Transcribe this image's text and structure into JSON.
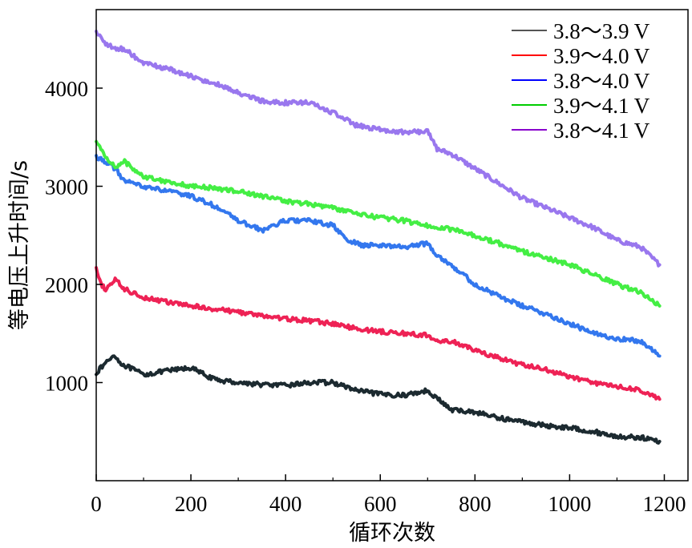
{
  "chart_data": {
    "type": "line",
    "title": "",
    "xlabel": "循环次数",
    "ylabel": "等电压上升时间/s",
    "xlim": [
      0,
      1250
    ],
    "ylim": [
      0,
      4800
    ],
    "x_ticks": [
      0,
      200,
      400,
      600,
      800,
      1000,
      1200
    ],
    "x_tick_labels": [
      "0",
      "200",
      "400",
      "600",
      "800",
      "1000",
      "1200"
    ],
    "y_ticks": [
      1000,
      2000,
      3000,
      4000
    ],
    "y_tick_labels": [
      "1000",
      "2000",
      "3000",
      "4000"
    ],
    "grid": false,
    "legend_position": "top-right",
    "series": [
      {
        "name": "3.8～3.9 V",
        "legend_color": "#555555",
        "color": "#1c2a30",
        "x": [
          0,
          30,
          40,
          50,
          100,
          150,
          200,
          250,
          300,
          350,
          400,
          450,
          500,
          550,
          600,
          650,
          700,
          720,
          750,
          800,
          850,
          900,
          950,
          1000,
          1050,
          1100,
          1150,
          1190
        ],
        "y": [
          1100,
          1250,
          1280,
          1200,
          1080,
          1120,
          1150,
          1030,
          1000,
          980,
          970,
          1000,
          1000,
          920,
          880,
          870,
          920,
          840,
          720,
          700,
          640,
          600,
          560,
          540,
          500,
          450,
          440,
          400
        ]
      },
      {
        "name": "3.9～4.0 V",
        "legend_color": "#ff0000",
        "color": "#ee2255",
        "x": [
          0,
          10,
          20,
          40,
          60,
          100,
          150,
          200,
          250,
          300,
          350,
          400,
          450,
          500,
          550,
          600,
          650,
          700,
          720,
          750,
          800,
          850,
          900,
          950,
          1000,
          1050,
          1100,
          1150,
          1190
        ],
        "y": [
          2150,
          2000,
          1950,
          2050,
          1950,
          1870,
          1820,
          1780,
          1750,
          1720,
          1680,
          1650,
          1630,
          1600,
          1550,
          1520,
          1500,
          1480,
          1420,
          1420,
          1330,
          1250,
          1180,
          1130,
          1060,
          1000,
          960,
          920,
          830
        ]
      },
      {
        "name": "3.8～4.0 V",
        "legend_color": "#0000ff",
        "color": "#3377ee",
        "x": [
          0,
          20,
          40,
          60,
          100,
          150,
          200,
          250,
          300,
          350,
          400,
          450,
          500,
          530,
          560,
          600,
          650,
          700,
          720,
          750,
          800,
          850,
          900,
          950,
          1000,
          1050,
          1100,
          1150,
          1190
        ],
        "y": [
          3300,
          3250,
          3180,
          3050,
          3000,
          2950,
          2900,
          2800,
          2650,
          2550,
          2650,
          2650,
          2600,
          2450,
          2400,
          2400,
          2380,
          2420,
          2300,
          2200,
          2000,
          1880,
          1780,
          1700,
          1600,
          1500,
          1450,
          1420,
          1270
        ]
      },
      {
        "name": "3.9～4.1 V",
        "legend_color": "#00cc00",
        "color": "#44ee44",
        "x": [
          0,
          20,
          40,
          60,
          100,
          150,
          200,
          250,
          300,
          350,
          400,
          450,
          500,
          550,
          600,
          650,
          700,
          750,
          800,
          850,
          900,
          950,
          1000,
          1050,
          1100,
          1150,
          1190
        ],
        "y": [
          3450,
          3300,
          3200,
          3250,
          3100,
          3050,
          3000,
          2980,
          2950,
          2900,
          2850,
          2820,
          2780,
          2720,
          2680,
          2650,
          2600,
          2560,
          2500,
          2420,
          2340,
          2270,
          2200,
          2100,
          2000,
          1920,
          1780
        ]
      },
      {
        "name": "3.8～4.1 V",
        "legend_color": "#8800cc",
        "color": "#9977ee",
        "x": [
          0,
          20,
          40,
          60,
          100,
          150,
          200,
          250,
          300,
          350,
          400,
          450,
          500,
          550,
          600,
          650,
          700,
          720,
          750,
          800,
          850,
          900,
          950,
          1000,
          1050,
          1100,
          1150,
          1190
        ],
        "y": [
          4580,
          4450,
          4400,
          4400,
          4250,
          4200,
          4120,
          4050,
          3950,
          3870,
          3850,
          3850,
          3750,
          3620,
          3580,
          3550,
          3560,
          3380,
          3330,
          3180,
          3030,
          2880,
          2780,
          2680,
          2580,
          2450,
          2380,
          2200
        ]
      }
    ]
  }
}
